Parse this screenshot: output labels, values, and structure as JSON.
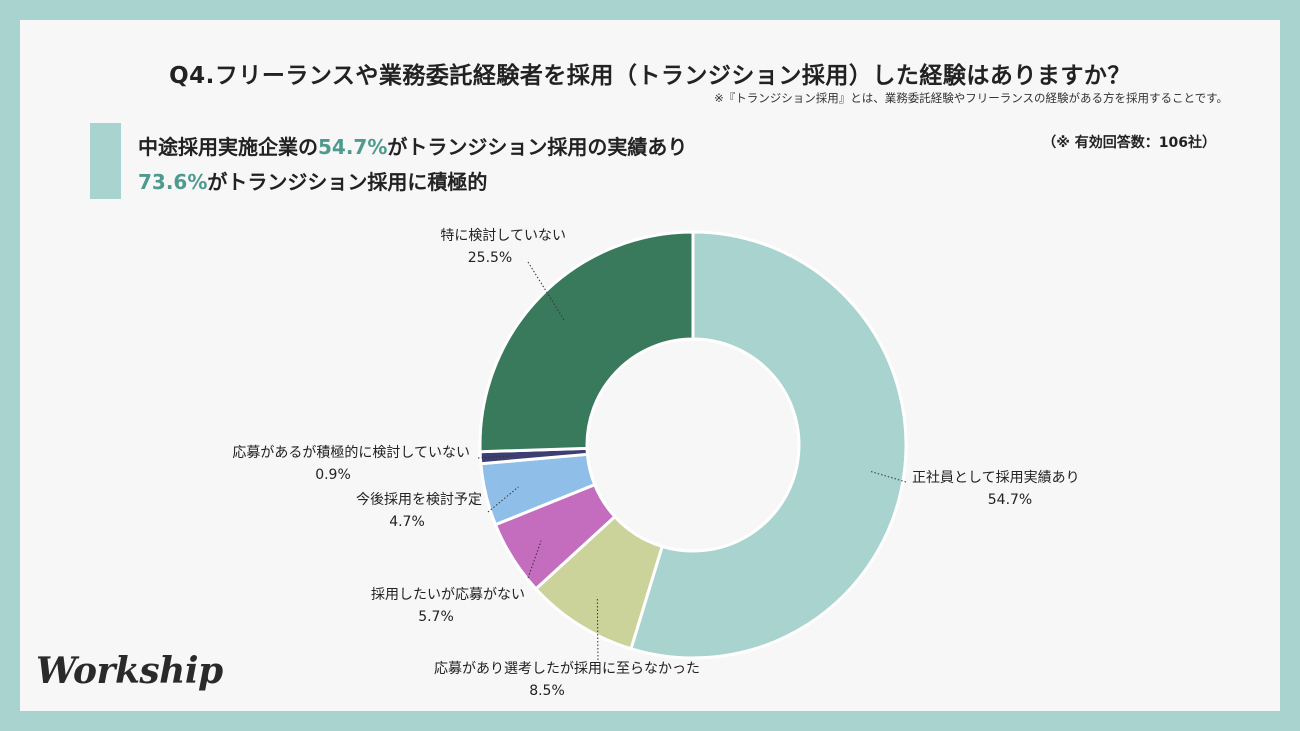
{
  "title": "Q4.フリーランスや業務委託経験者を採用（トランジション採用）した経験はありますか？",
  "note": "※『トランジション採用』とは、業務委託経験やフリーランスの経験がある方を採用することです。",
  "headline": {
    "line1_pre": "中途採用実施企業の",
    "line1_highlight": "54.7%",
    "line1_post": "がトランジション採用の実績あり",
    "line2_highlight": "73.6%",
    "line2_post": "がトランジション採用に積極的"
  },
  "respondents": "（※ 有効回答数：106社）",
  "logo": "Workship",
  "colors": {
    "accent": "#a8d3cf",
    "highlight": "#4e9a8e"
  },
  "chart_data": {
    "type": "pie",
    "style": "donut",
    "slices": [
      {
        "label": "正社員として採用実績あり",
        "value": 54.7,
        "value_label": "54.7%",
        "color": "#a8d3cf"
      },
      {
        "label": "応募があり選考したが採用に至らなかった",
        "value": 8.5,
        "value_label": "8.5%",
        "color": "#cbd39a"
      },
      {
        "label": "採用したいが応募がない",
        "value": 5.7,
        "value_label": "5.7%",
        "color": "#c46cbd"
      },
      {
        "label": "今後採用を検討予定",
        "value": 4.7,
        "value_label": "4.7%",
        "color": "#8fbfe9"
      },
      {
        "label": "応募があるが積極的に検討していない",
        "value": 0.9,
        "value_label": "0.9%",
        "color": "#3d3f73"
      },
      {
        "label": "特に検討していない",
        "value": 25.5,
        "value_label": "25.5%",
        "color": "#3a7a5c"
      }
    ]
  }
}
